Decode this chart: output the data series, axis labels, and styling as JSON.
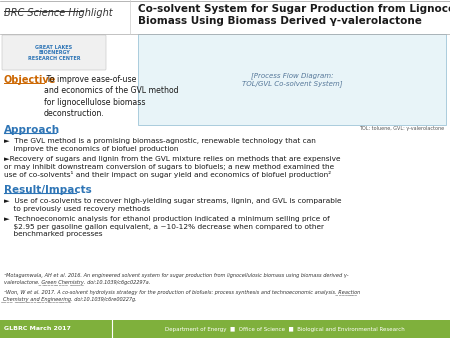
{
  "title_left": "BRC Science Highlight",
  "title_main": "Co-solvent System for Sugar Production from Lignocellulosic\nBiomass Using Biomass Derived γ-valerolactone",
  "objective_label": "Objective",
  "objective_text": " To improve ease-of-use\nand economics of the GVL method\nfor lignocellulose biomass\ndeconstruction.",
  "approach_label": "Approach",
  "results_label": "Result/Impacts",
  "footer_left": "GLBRC March 2017",
  "footer_right": "Department of Energy  ■  Office of Science  ■  Biological and Environmental Research",
  "bg_color": "#ffffff",
  "section_color": "#2e75b6",
  "footer_bg": "#7fb03c",
  "footer_text_color": "#ffffff",
  "objective_color": "#cc6600",
  "body_color": "#1a1a1a"
}
